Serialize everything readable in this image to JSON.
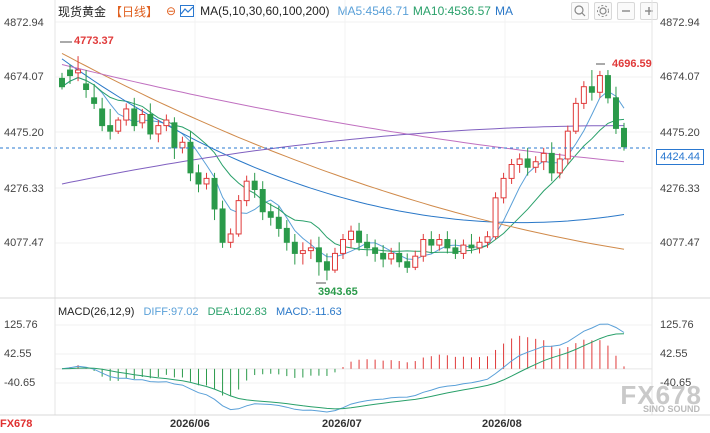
{
  "header": {
    "title": "现货黄金",
    "period": "【日线】",
    "ma_name": "MA(5,10,30,60,100,200)",
    "ma5": "MA5:4546.71",
    "ma10": "MA10:4536.57",
    "ma_more": "MA"
  },
  "toolbar": {
    "buttons": [
      "search-icon",
      "settings-icon",
      "minus-icon",
      "plus-icon"
    ]
  },
  "y_axis_left": [
    "4872.94",
    "4674.07",
    "4475.20",
    "4276.33",
    "4077.47"
  ],
  "y_axis_right": [
    "4872.94",
    "4674.07",
    "4475.20",
    "4276.33",
    "4077.47"
  ],
  "current_price": "4424.44",
  "high_label": "4773.37",
  "high_label_right": "4696.59",
  "low_label": "3943.65",
  "macd": {
    "name": "MACD(26,12,9)",
    "diff": "DIFF:97.02",
    "dea": "DEA:102.83",
    "macd": "MACD:-11.63",
    "axis_left": [
      "125.76",
      "42.55",
      "-40.65"
    ],
    "axis_right": [
      "125.76",
      "42.55",
      "-40.65"
    ]
  },
  "x_labels": [
    "2026/06",
    "2026/07",
    "2026/08"
  ],
  "watermark": "FX678",
  "watermark_sub": "SINO SOUND",
  "logo": "FX678",
  "colors": {
    "up": "#e03a3a",
    "down": "#2a9a4a",
    "ma5": "#5aa0d8",
    "ma10": "#29a06a",
    "ma30": "#2a78c8",
    "ma60": "#d08a4a",
    "ma100": "#c070c0",
    "ma200": "#8060c0",
    "price_line": "#2a78d0"
  },
  "chart_data": {
    "type": "candlestick",
    "candles": [
      [
        4670,
        4690,
        4640,
        4630
      ],
      [
        4700,
        4720,
        4680,
        4650
      ],
      [
        4690,
        4750,
        4700,
        4660
      ],
      [
        4650,
        4700,
        4630,
        4600
      ],
      [
        4600,
        4650,
        4580,
        4560
      ],
      [
        4560,
        4600,
        4500,
        4480
      ],
      [
        4500,
        4560,
        4480,
        4450
      ],
      [
        4480,
        4530,
        4520,
        4470
      ],
      [
        4520,
        4580,
        4560,
        4500
      ],
      [
        4560,
        4600,
        4500,
        4480
      ],
      [
        4510,
        4560,
        4540,
        4490
      ],
      [
        4540,
        4580,
        4470,
        4450
      ],
      [
        4470,
        4520,
        4500,
        4440
      ],
      [
        4500,
        4540,
        4520,
        4480
      ],
      [
        4510,
        4530,
        4420,
        4380
      ],
      [
        4420,
        4460,
        4440,
        4400
      ],
      [
        4440,
        4480,
        4330,
        4300
      ],
      [
        4330,
        4360,
        4290,
        4260
      ],
      [
        4290,
        4330,
        4310,
        4270
      ],
      [
        4310,
        4330,
        4200,
        4160
      ],
      [
        4200,
        4230,
        4080,
        4060
      ],
      [
        4080,
        4130,
        4110,
        4060
      ],
      [
        4110,
        4250,
        4230,
        4100
      ],
      [
        4230,
        4320,
        4300,
        4210
      ],
      [
        4300,
        4330,
        4270,
        4240
      ],
      [
        4270,
        4300,
        4190,
        4160
      ],
      [
        4190,
        4220,
        4170,
        4140
      ],
      [
        4170,
        4210,
        4130,
        4100
      ],
      [
        4130,
        4160,
        4080,
        4050
      ],
      [
        4080,
        4110,
        4040,
        4000
      ],
      [
        4040,
        4080,
        4050,
        4000
      ],
      [
        4050,
        4090,
        4060,
        4020
      ],
      [
        4060,
        4100,
        4010,
        3960
      ],
      [
        4010,
        4040,
        3980,
        3943
      ],
      [
        3980,
        4060,
        4040,
        3970
      ],
      [
        4040,
        4110,
        4090,
        4020
      ],
      [
        4090,
        4140,
        4120,
        4060
      ],
      [
        4120,
        4150,
        4080,
        4050
      ],
      [
        4080,
        4110,
        4060,
        4030
      ],
      [
        4060,
        4090,
        4040,
        4010
      ],
      [
        4040,
        4070,
        4020,
        3990
      ],
      [
        4020,
        4060,
        4040,
        4000
      ],
      [
        4040,
        4080,
        4010,
        3990
      ],
      [
        4010,
        4040,
        3990,
        3970
      ],
      [
        3990,
        4050,
        4030,
        3980
      ],
      [
        4030,
        4110,
        4090,
        4010
      ],
      [
        4090,
        4120,
        4070,
        4040
      ],
      [
        4070,
        4110,
        4090,
        4050
      ],
      [
        4090,
        4120,
        4060,
        4040
      ],
      [
        4060,
        4090,
        4040,
        4020
      ],
      [
        4040,
        4090,
        4070,
        4020
      ],
      [
        4070,
        4110,
        4060,
        4040
      ],
      [
        4060,
        4100,
        4080,
        4040
      ],
      [
        4080,
        4120,
        4100,
        4060
      ],
      [
        4100,
        4260,
        4240,
        4090
      ],
      [
        4240,
        4330,
        4310,
        4220
      ],
      [
        4310,
        4380,
        4360,
        4290
      ],
      [
        4360,
        4400,
        4380,
        4330
      ],
      [
        4380,
        4420,
        4350,
        4320
      ],
      [
        4350,
        4390,
        4370,
        4330
      ],
      [
        4370,
        4420,
        4400,
        4340
      ],
      [
        4400,
        4440,
        4330,
        4300
      ],
      [
        4330,
        4400,
        4380,
        4310
      ],
      [
        4380,
        4500,
        4480,
        4360
      ],
      [
        4480,
        4600,
        4580,
        4470
      ],
      [
        4580,
        4660,
        4640,
        4560
      ],
      [
        4640,
        4700,
        4620,
        4590
      ],
      [
        4620,
        4697,
        4680,
        4600
      ],
      [
        4680,
        4700,
        4600,
        4580
      ],
      [
        4600,
        4640,
        4490,
        4470
      ],
      [
        4490,
        4510,
        4424,
        4410
      ]
    ]
  }
}
